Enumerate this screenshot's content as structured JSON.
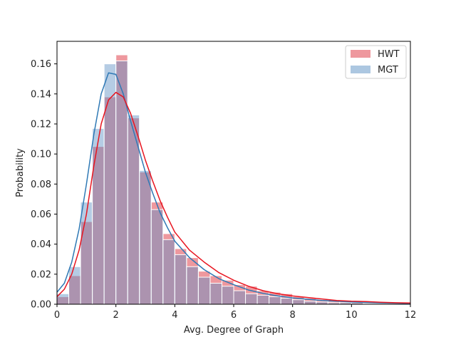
{
  "chart_data": {
    "type": "bar",
    "xlabel": "Avg. Degree of Graph",
    "ylabel": "Probability",
    "xlim": [
      0,
      12
    ],
    "ylim": [
      0,
      0.175
    ],
    "x_ticks": [
      "0",
      "2",
      "4",
      "6",
      "8",
      "10",
      "12"
    ],
    "y_ticks": [
      "0.00",
      "0.02",
      "0.04",
      "0.06",
      "0.08",
      "0.10",
      "0.12",
      "0.14",
      "0.16"
    ],
    "legend": {
      "placement": "top-right",
      "entries": [
        "HWT",
        "MGT"
      ]
    },
    "bin_edges": [
      0,
      0.4,
      0.8,
      1.2,
      1.6,
      2.0,
      2.4,
      2.8,
      3.2,
      3.6,
      4.0,
      4.4,
      4.8,
      5.2,
      5.6,
      6.0,
      6.4,
      6.8,
      7.2,
      7.6,
      8.0,
      8.4,
      8.8,
      9.2,
      9.6,
      10.0,
      10.4,
      10.8,
      11.2,
      11.6,
      12.0
    ],
    "series": [
      {
        "name": "HWT",
        "color": "#e0434f",
        "histogram": [
          0.005,
          0.019,
          0.055,
          0.105,
          0.138,
          0.166,
          0.124,
          0.088,
          0.068,
          0.047,
          0.037,
          0.031,
          0.022,
          0.019,
          0.016,
          0.013,
          0.012,
          0.009,
          0.008,
          0.007,
          0.005,
          0.004,
          0.003,
          0.002,
          0.002,
          0.001,
          0.001,
          0.001,
          0.001,
          0.001
        ],
        "kde_x": [
          0,
          0.25,
          0.5,
          0.75,
          1.0,
          1.25,
          1.5,
          1.75,
          2.0,
          2.25,
          2.5,
          2.75,
          3.0,
          3.25,
          3.5,
          3.75,
          4.0,
          4.5,
          5.0,
          5.5,
          6.0,
          6.5,
          7.0,
          7.5,
          8.0,
          8.5,
          9.0,
          9.5,
          10.0,
          10.5,
          11.0,
          11.5,
          12.0
        ],
        "kde_y": [
          0.005,
          0.01,
          0.02,
          0.036,
          0.06,
          0.092,
          0.12,
          0.136,
          0.141,
          0.138,
          0.127,
          0.112,
          0.096,
          0.082,
          0.069,
          0.058,
          0.048,
          0.036,
          0.028,
          0.021,
          0.016,
          0.012,
          0.009,
          0.007,
          0.0055,
          0.0045,
          0.0035,
          0.0025,
          0.002,
          0.0018,
          0.0013,
          0.001,
          0.0008
        ]
      },
      {
        "name": "MGT",
        "color": "#5a8fc4",
        "histogram": [
          0.007,
          0.025,
          0.068,
          0.117,
          0.16,
          0.162,
          0.126,
          0.089,
          0.063,
          0.043,
          0.033,
          0.025,
          0.018,
          0.014,
          0.012,
          0.009,
          0.007,
          0.006,
          0.005,
          0.004,
          0.003,
          0.002,
          0.0015,
          0.001,
          0.001,
          0.001,
          0.0005,
          0.0005,
          0.0005,
          0.0005
        ],
        "kde_x": [
          0,
          0.25,
          0.5,
          0.75,
          1.0,
          1.25,
          1.5,
          1.75,
          2.0,
          2.25,
          2.5,
          2.75,
          3.0,
          3.25,
          3.5,
          3.75,
          4.0,
          4.5,
          5.0,
          5.5,
          6.0,
          6.5,
          7.0,
          7.5,
          8.0,
          8.5,
          9.0,
          9.5,
          10.0,
          10.5,
          11.0,
          11.5,
          12.0
        ],
        "kde_y": [
          0.008,
          0.014,
          0.028,
          0.05,
          0.08,
          0.113,
          0.14,
          0.154,
          0.153,
          0.14,
          0.122,
          0.105,
          0.088,
          0.074,
          0.061,
          0.051,
          0.042,
          0.031,
          0.023,
          0.017,
          0.013,
          0.0095,
          0.0072,
          0.0055,
          0.0042,
          0.0033,
          0.0025,
          0.002,
          0.0015,
          0.0012,
          0.0009,
          0.0007,
          0.0005
        ]
      }
    ]
  }
}
